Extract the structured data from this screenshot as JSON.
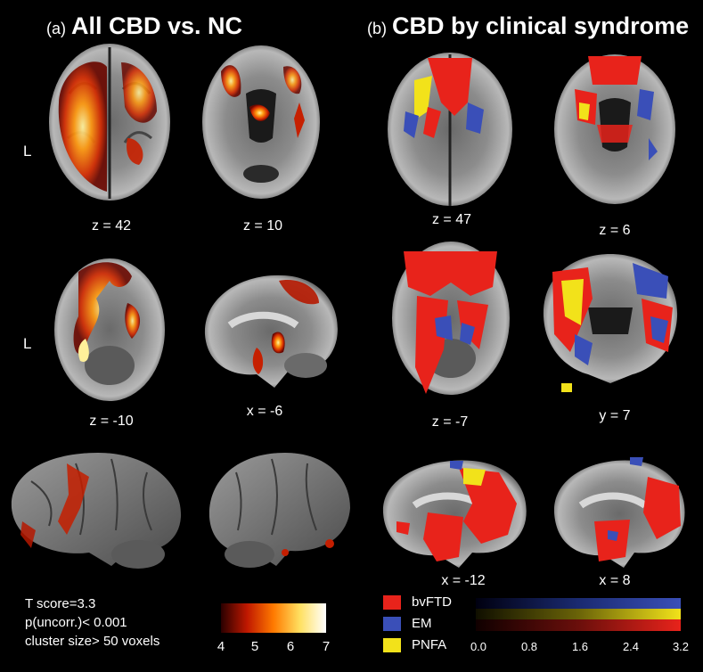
{
  "panel_a": {
    "letter": "(a)",
    "title": "All CBD vs. NC",
    "side_label_1": "L",
    "side_label_2": "L",
    "coords": [
      "z = 42",
      "z = 10",
      "z = -10",
      "x = -6"
    ]
  },
  "panel_b": {
    "letter": "(b)",
    "title": "CBD by clinical syndrome",
    "coords": [
      "z = 47",
      "z = 6",
      "z = -7",
      "y = 7",
      "x = -12",
      "x = 8"
    ]
  },
  "stats": {
    "line1": "T score=3.3",
    "line2": "p(uncorr.)< 0.001",
    "line3": "cluster size> 50 voxels"
  },
  "colorbar_a": {
    "ticks": [
      "4",
      "5",
      "6",
      "7"
    ],
    "colors": [
      "#2a0000",
      "#c01800",
      "#ff7a00",
      "#ffe060",
      "#ffffff"
    ]
  },
  "legend_b": {
    "items": [
      {
        "label": "bvFTD",
        "color": "#e8231b"
      },
      {
        "label": "EM",
        "color": "#3a4fb8"
      },
      {
        "label": "PNFA",
        "color": "#f2e21a"
      }
    ]
  },
  "colorbar_b": {
    "ticks": [
      "0.0",
      "0.8",
      "1.6",
      "2.4",
      "3.2"
    ]
  }
}
